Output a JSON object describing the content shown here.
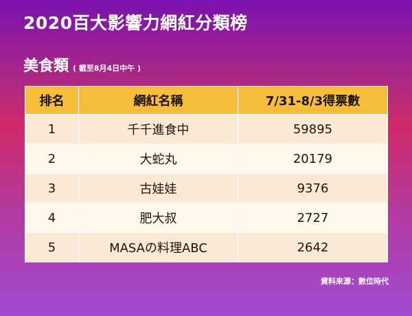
{
  "header": {
    "title": "2020百大影響力網紅分類榜",
    "subtitle": "美食類",
    "note": "( 截至8月4日中午 )"
  },
  "table": {
    "columns": [
      "排名",
      "網紅名稱",
      "7/31-8/3得票數"
    ],
    "rows": [
      {
        "rank": "1",
        "name": "千千進食中",
        "votes": "59895"
      },
      {
        "rank": "2",
        "name": "大蛇丸",
        "votes": "20179"
      },
      {
        "rank": "3",
        "name": "古娃娃",
        "votes": "9376"
      },
      {
        "rank": "4",
        "name": "肥大叔",
        "votes": "2727"
      },
      {
        "rank": "5",
        "name": "MASAの料理ABC",
        "votes": "2642"
      }
    ]
  },
  "footer": {
    "source": "資料來源：數位時代"
  },
  "colors": {
    "header_row": "#f6bd3a",
    "row_odd": "#fbe9d3",
    "row_even": "#fff8ec"
  }
}
